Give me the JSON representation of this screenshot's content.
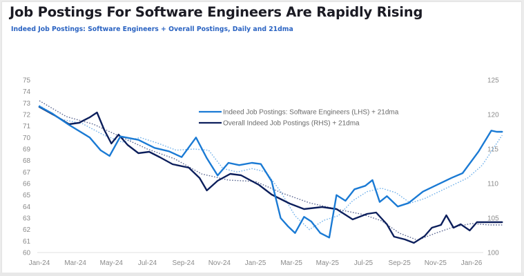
{
  "header": {
    "title": "Job Postings For Software Engineers Are Rapidly Rising",
    "subtitle": "Indeed Job Postings: Software Engineers + Overall Postings, Daily and 21dma"
  },
  "colors": {
    "software": "#1a7ad4",
    "overall": "#0c1f5c",
    "software_ma": "#6fb0ea",
    "overall_ma": "#5a6690",
    "subtitle": "#2a63c2"
  },
  "chart_data": {
    "type": "line",
    "title": "Job Postings For Software Engineers Are Rapidly Rising",
    "subtitle": "Indeed Job Postings: Software Engineers + Overall Postings, Daily and 21dma",
    "xlabel": "",
    "ylabel_left": "",
    "ylabel_right": "",
    "x_ticks": [
      "Jan-24",
      "Mar-24",
      "May-24",
      "Jul-24",
      "Sep-24",
      "Nov-24",
      "Jan-25",
      "Mar-25",
      "May-25",
      "Jul-25",
      "Sep-25",
      "Nov-25",
      "Jan-26"
    ],
    "x_unit": "months since Jan-24",
    "x_range": [
      0,
      26.2
    ],
    "y_left": {
      "range": [
        60,
        75
      ],
      "ticks": [
        "60",
        "61",
        "62",
        "63",
        "64",
        "65",
        "66",
        "67",
        "68",
        "69",
        "70",
        "71",
        "72",
        "73",
        "74",
        "75"
      ]
    },
    "y_right": {
      "range": [
        100,
        125
      ],
      "ticks": [
        "100",
        "105",
        "110",
        "115",
        "120",
        "125"
      ]
    },
    "grid": false,
    "legend_position": "top-center",
    "legend": [
      "Indeed Job Postings: Software Engineers (LHS) + 21dma",
      "Overall Indeed Job Postings (RHS) + 21dma"
    ],
    "series": [
      {
        "name": "Indeed Job Postings: Software Engineers (LHS)",
        "axis": "left",
        "style": "solid",
        "x": [
          0,
          0.7,
          1.65,
          2.8,
          3.4,
          3.9,
          4.5,
          5.5,
          6.4,
          7.2,
          7.9,
          8.7,
          9.3,
          9.9,
          10.5,
          11.1,
          11.8,
          12.3,
          12.9,
          13.4,
          13.8,
          14.2,
          14.7,
          15.1,
          15.6,
          16.1,
          16.5,
          17.0,
          17.5,
          18.1,
          18.5,
          18.9,
          19.3,
          19.9,
          20.5,
          21.3,
          22.1,
          22.9,
          23.5,
          24.4,
          25.1,
          25.4,
          25.7
        ],
        "y": [
          72.7,
          72.1,
          71.1,
          70.0,
          68.9,
          68.4,
          70.1,
          69.8,
          69.1,
          68.8,
          68.3,
          70.0,
          68.2,
          66.7,
          67.8,
          67.6,
          67.8,
          67.7,
          66.2,
          63.0,
          62.3,
          61.7,
          63.1,
          62.7,
          61.7,
          61.3,
          65.0,
          64.5,
          65.5,
          65.8,
          66.3,
          64.4,
          64.9,
          64.0,
          64.3,
          65.3,
          65.9,
          66.5,
          66.9,
          68.8,
          70.6,
          70.5,
          70.5
        ]
      },
      {
        "name": "Software Engineers 21dma",
        "axis": "left",
        "style": "dotted",
        "x": [
          0,
          1.2,
          2.4,
          3.6,
          4.6,
          5.6,
          6.6,
          7.6,
          8.6,
          9.4,
          10.2,
          11.0,
          11.8,
          12.6,
          13.4,
          14.2,
          15.0,
          15.8,
          16.6,
          17.4,
          18.2,
          19.0,
          19.8,
          20.6,
          21.4,
          22.2,
          23.0,
          23.8,
          24.6,
          25.4,
          25.7
        ],
        "y": [
          72.8,
          71.6,
          71.2,
          70.2,
          69.6,
          70.0,
          69.5,
          68.9,
          69.0,
          68.9,
          67.3,
          67.0,
          67.3,
          67.0,
          65.3,
          63.2,
          62.0,
          62.8,
          63.2,
          64.5,
          65.3,
          65.6,
          65.2,
          64.3,
          64.7,
          65.3,
          65.9,
          66.5,
          67.6,
          69.5,
          70.2
        ]
      },
      {
        "name": "Overall Indeed Job Postings (RHS)",
        "axis": "right",
        "style": "solid",
        "x": [
          0,
          0.9,
          1.65,
          2.2,
          2.8,
          3.2,
          3.6,
          4.0,
          4.4,
          4.9,
          5.5,
          6.1,
          6.7,
          7.4,
          8.3,
          8.9,
          9.3,
          9.9,
          10.6,
          11.2,
          12.2,
          12.9,
          13.9,
          14.7,
          15.7,
          16.5,
          17.4,
          18.2,
          18.7,
          19.3,
          19.7,
          20.3,
          20.8,
          21.4,
          21.8,
          22.3,
          22.6,
          23.0,
          23.4,
          23.9,
          24.3,
          24.9,
          25.7
        ],
        "y": [
          121.1,
          119.8,
          118.6,
          118.8,
          119.6,
          120.3,
          117.8,
          115.8,
          117.1,
          115.6,
          114.4,
          114.6,
          113.8,
          112.8,
          112.3,
          110.8,
          109.0,
          110.4,
          111.4,
          111.2,
          109.8,
          108.4,
          107.1,
          106.3,
          106.6,
          106.3,
          104.8,
          105.6,
          105.8,
          104.1,
          102.3,
          101.9,
          101.4,
          102.4,
          103.6,
          104.0,
          105.4,
          103.6,
          104.1,
          103.2,
          104.4,
          104.4,
          104.4
        ]
      },
      {
        "name": "Overall 21dma",
        "axis": "right",
        "style": "dotted",
        "x": [
          0,
          1.5,
          3.0,
          4.5,
          6.0,
          7.5,
          9.0,
          10.5,
          12.0,
          13.5,
          15.0,
          16.5,
          18.0,
          19.0,
          20.0,
          21.0,
          22.0,
          23.0,
          24.0,
          25.0,
          25.7
        ],
        "y": [
          122.0,
          119.7,
          118.6,
          116.8,
          115.0,
          113.6,
          111.4,
          110.5,
          110.3,
          108.6,
          107.2,
          106.3,
          105.5,
          104.6,
          102.8,
          101.8,
          102.8,
          103.7,
          104.2,
          104.0,
          104.0
        ]
      }
    ]
  }
}
